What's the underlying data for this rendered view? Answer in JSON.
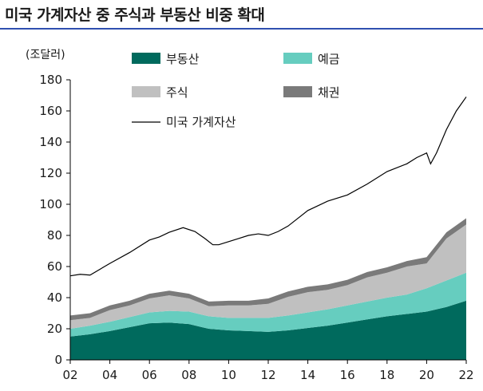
{
  "header": {
    "title": "미국 가계자산 중 주식과 부동산 비중 확대"
  },
  "chart_data": {
    "type": "area",
    "title": "미국 가계자산 중 주식과 부동산 비중 확대",
    "unit": "(조달러)",
    "xlabel": "",
    "ylabel": "",
    "ylim": [
      0,
      180
    ],
    "yticks": [
      0,
      20,
      40,
      60,
      80,
      100,
      120,
      140,
      160,
      180
    ],
    "xlim": [
      2002,
      2022
    ],
    "xticks": [
      {
        "value": 2002,
        "label": "02"
      },
      {
        "value": 2004,
        "label": "04"
      },
      {
        "value": 2006,
        "label": "06"
      },
      {
        "value": 2008,
        "label": "08"
      },
      {
        "value": 2010,
        "label": "10"
      },
      {
        "value": 2012,
        "label": "12"
      },
      {
        "value": 2014,
        "label": "14"
      },
      {
        "value": 2016,
        "label": "16"
      },
      {
        "value": 2018,
        "label": "18"
      },
      {
        "value": 2020,
        "label": "20"
      },
      {
        "value": 2022,
        "label": "22"
      }
    ],
    "grid": false,
    "legend_position": "top",
    "x": [
      2002,
      2003,
      2004,
      2005,
      2006,
      2007,
      2008,
      2009,
      2010,
      2011,
      2012,
      2013,
      2014,
      2015,
      2016,
      2017,
      2018,
      2019,
      2020,
      2021,
      2022
    ],
    "stacked_series": [
      {
        "name": "부동산",
        "color": "#006a5d",
        "values": [
          15,
          16.5,
          18.5,
          21,
          23.5,
          24,
          23,
          20,
          19,
          18.5,
          18,
          19,
          20.5,
          22,
          24,
          26,
          28,
          29.5,
          31,
          34,
          38
        ]
      },
      {
        "name": "예금",
        "color": "#66cdbf",
        "values": [
          5,
          5.5,
          6,
          6.5,
          7,
          7.5,
          8,
          8,
          8,
          8.5,
          9,
          9.5,
          10,
          10.5,
          11,
          11.5,
          12,
          12.5,
          15,
          17,
          18
        ]
      },
      {
        "name": "주식",
        "color": "#c0c0c0",
        "values": [
          5.5,
          5,
          7.5,
          7.5,
          9,
          10,
          8.5,
          6.5,
          8,
          8,
          9,
          12,
          13,
          12.5,
          13,
          15.5,
          16,
          18,
          16,
          27,
          31
        ]
      },
      {
        "name": "채권",
        "color": "#7a7a7a",
        "values": [
          3,
          3,
          3,
          3,
          3,
          3,
          3,
          3,
          3,
          3,
          3.5,
          3.5,
          3.5,
          3.5,
          3.5,
          3.5,
          3.5,
          3.5,
          4,
          4,
          4
        ]
      }
    ],
    "line_series": {
      "name": "미국 가계자산",
      "color": "#000000",
      "x": [
        2002,
        2002.5,
        2003,
        2004,
        2005,
        2006,
        2006.5,
        2007,
        2007.7,
        2008.3,
        2008.8,
        2009.2,
        2009.5,
        2010,
        2010.5,
        2011,
        2011.5,
        2012,
        2012.5,
        2013,
        2014,
        2015,
        2016,
        2017,
        2018,
        2019,
        2019.5,
        2020,
        2020.2,
        2020.5,
        2021,
        2021.5,
        2022
      ],
      "values": [
        54,
        55,
        54.5,
        62,
        69,
        77,
        79,
        82,
        85,
        82.5,
        78,
        74,
        74,
        76,
        78,
        80,
        81,
        80,
        82.5,
        86,
        96,
        102,
        106,
        113,
        121,
        126,
        130,
        133,
        126,
        133,
        148,
        160,
        169
      ]
    }
  }
}
